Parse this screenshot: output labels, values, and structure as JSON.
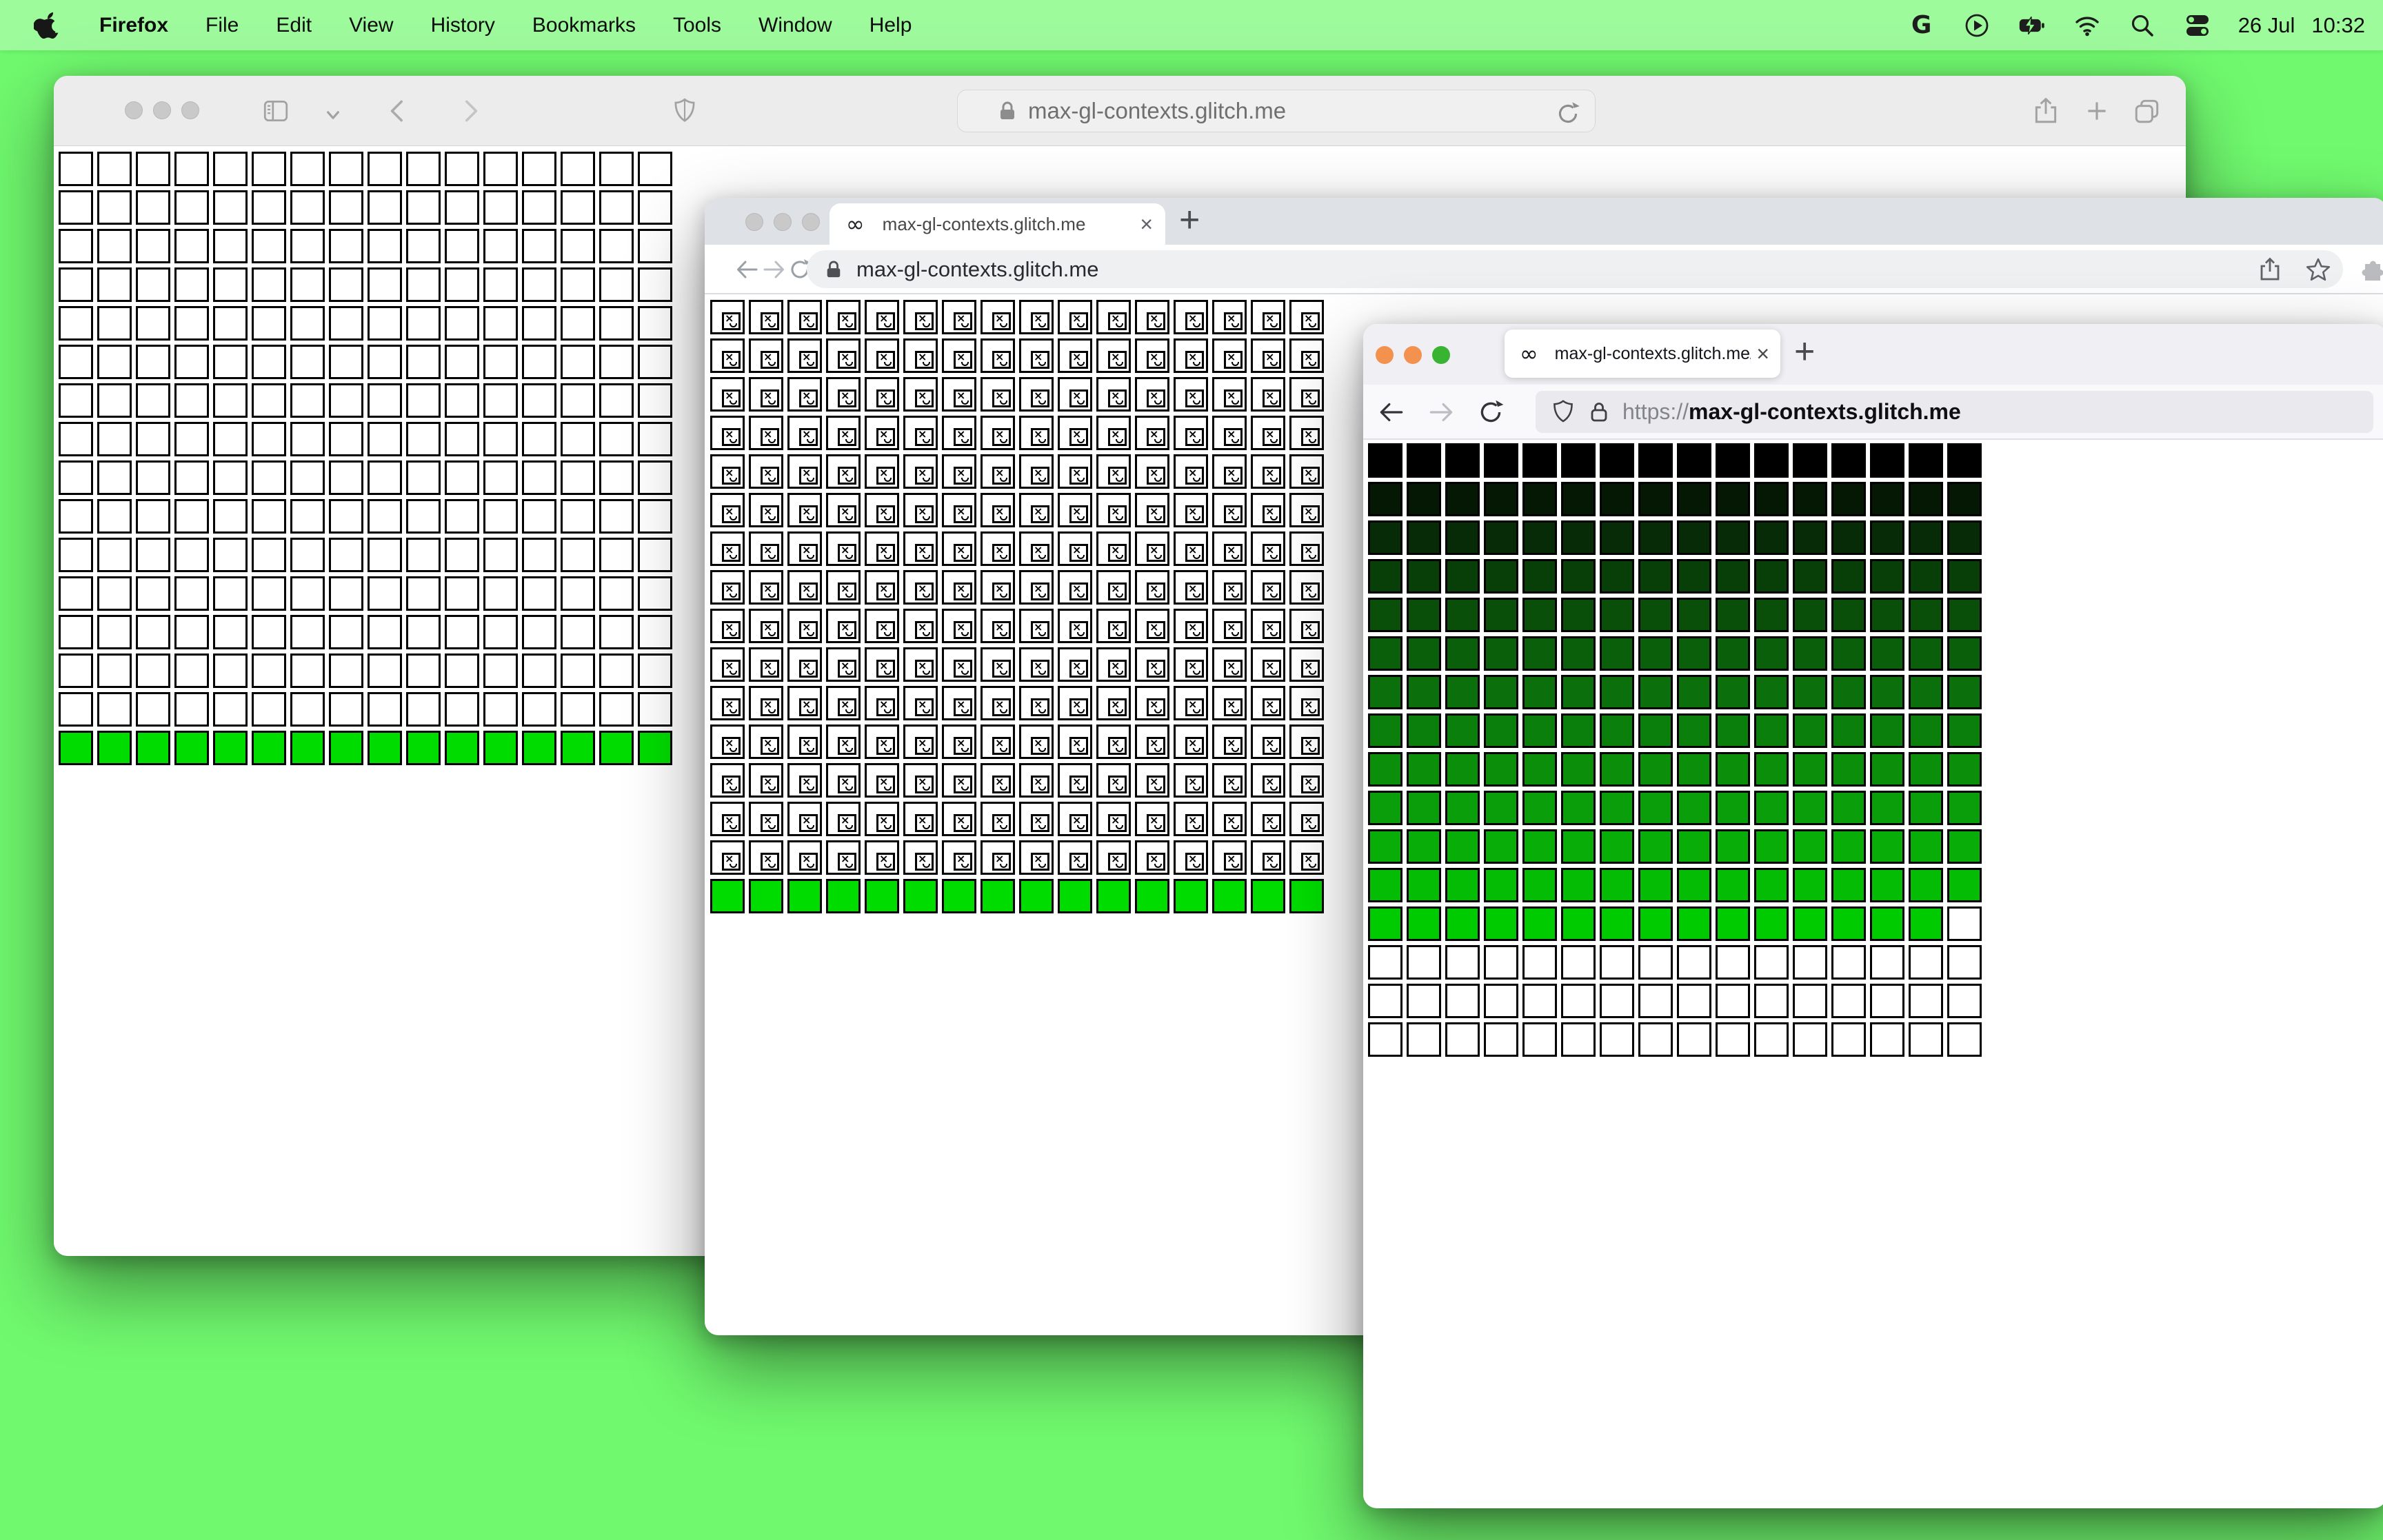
{
  "menu_bar": {
    "app_name": "Firefox",
    "menus": [
      "File",
      "Edit",
      "View",
      "History",
      "Bookmarks",
      "Tools",
      "Window",
      "Help"
    ],
    "date": "26 Jul",
    "time": "10:32",
    "google_g": "G"
  },
  "glyphs": {
    "infinity": "∞",
    "close": "×",
    "plus": "+",
    "broken_x": "×"
  },
  "safari_window": {
    "url": "max-gl-contexts.glitch.me"
  },
  "chrome_window": {
    "tab_title": "max-gl-contexts.glitch.me",
    "url": "max-gl-contexts.glitch.me"
  },
  "firefox_window": {
    "tab_title": "max-gl-contexts.glitch.me/",
    "url_scheme": "https://",
    "url_host": "max-gl-contexts.glitch.me"
  },
  "colors": {
    "desktop": "#70f96e",
    "canvas_green": "#00dc00",
    "firefox_gradient_end": "#00ca00",
    "traffic_orange": "#f3914f",
    "traffic_green": "#38b432"
  },
  "grids": {
    "safari": {
      "cols": 16,
      "cell": 50,
      "gap": 6,
      "rows": [
        "#ffffff",
        "#ffffff",
        "#ffffff",
        "#ffffff",
        "#ffffff",
        "#ffffff",
        "#ffffff",
        "#ffffff",
        "#ffffff",
        "#ffffff",
        "#ffffff",
        "#ffffff",
        "#ffffff",
        "#ffffff",
        "#ffffff",
        "#00dc00"
      ]
    },
    "chrome": {
      "cols": 16,
      "cell": 50,
      "gap": 6,
      "rows": [
        "broken",
        "broken",
        "broken",
        "broken",
        "broken",
        "broken",
        "broken",
        "broken",
        "broken",
        "broken",
        "broken",
        "broken",
        "broken",
        "broken",
        "broken",
        "#00dc00"
      ]
    },
    "firefox": {
      "cols": 16,
      "cell": 50,
      "gap": 6,
      "rows": [
        "#000000",
        "#041804",
        "#062b06",
        "#083e08",
        "#094f09",
        "#0a5f0a",
        "#0b6f0b",
        "#0b7f0b",
        "#0b8f0b",
        "#0a9e0a",
        "#08ad08",
        "#04bc04",
        "#00ca00",
        "#ffffff",
        "#ffffff",
        "#ffffff"
      ],
      "overrides": [
        {
          "row": 13,
          "col": 16,
          "color": "#ffffff"
        }
      ]
    }
  }
}
